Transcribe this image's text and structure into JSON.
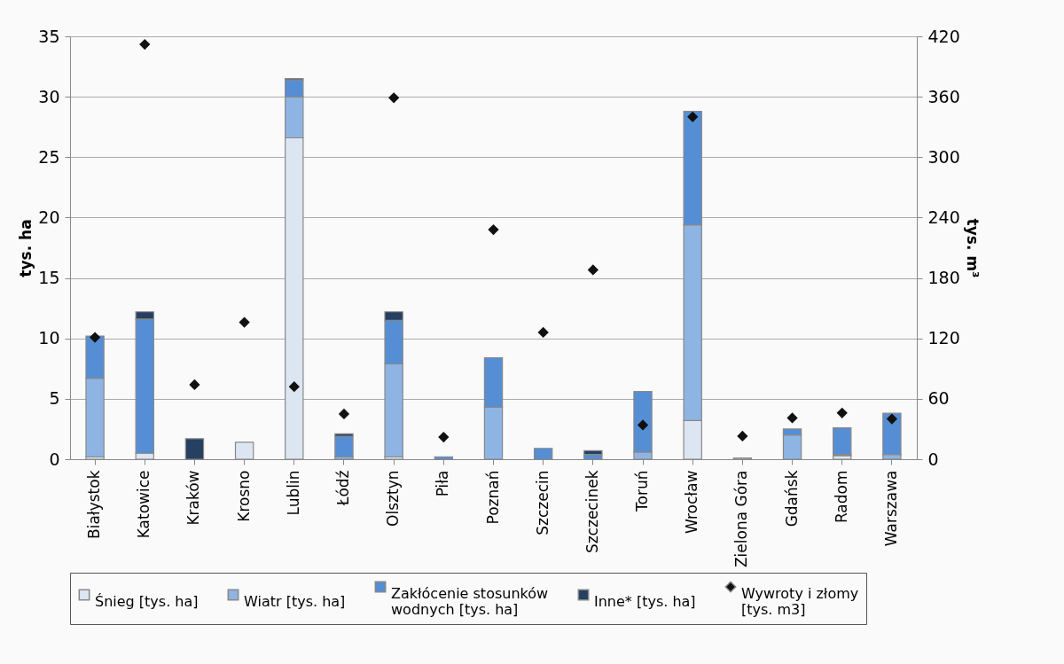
{
  "chart_data": {
    "type": "bar",
    "stacked": true,
    "ylabel": "tys. ha",
    "y2label": "tys. m³",
    "categories": [
      "Białystok",
      "Katowice",
      "Kraków",
      "Krosno",
      "Lublin",
      "Łódź",
      "Olsztyn",
      "Piła",
      "Poznań",
      "Szczecin",
      "Szczecinek",
      "Toruń",
      "Wrocław",
      "Zielona Góra",
      "Gdańsk",
      "Radom",
      "Warszawa"
    ],
    "series": [
      {
        "name": "Śnieg [tys. ha]",
        "color": "#dce6f2",
        "values": [
          0.2,
          0.5,
          0,
          1.4,
          26.6,
          0,
          0.2,
          0,
          0,
          0,
          0,
          0,
          3.2,
          0.1,
          0,
          0.3,
          0
        ]
      },
      {
        "name": "Wiatr [tys. ha]",
        "color": "#8eb4e3",
        "values": [
          6.5,
          0,
          0,
          0,
          3.4,
          0.2,
          7.7,
          0,
          4.3,
          0,
          0,
          0.6,
          16.2,
          0,
          2.0,
          0.1,
          0.4
        ]
      },
      {
        "name": "Zakłócenie stosunków wodnych [tys. ha]",
        "color": "#558ed5",
        "values": [
          3.5,
          11.1,
          0,
          0,
          1.4,
          1.7,
          3.6,
          0.2,
          4.1,
          0.9,
          0.4,
          5.0,
          9.4,
          0,
          0.5,
          2.2,
          3.4
        ]
      },
      {
        "name": "Inne* [tys. ha]",
        "color": "#254061",
        "values": [
          0,
          0.6,
          1.7,
          0,
          0.1,
          0.2,
          0.7,
          0,
          0,
          0,
          0.3,
          0,
          0,
          0,
          0,
          0,
          0
        ]
      },
      {
        "name": "Wywroty i złomy [tys. m3]",
        "type": "scatter",
        "axis": "y2",
        "marker": "diamond",
        "color": "#111111",
        "values": [
          121,
          412,
          74,
          136,
          72,
          45,
          359,
          22,
          228,
          126,
          188,
          34,
          340,
          23,
          41,
          46,
          40
        ]
      }
    ],
    "ylim": [
      0,
      35
    ],
    "yticks": [
      0,
      5,
      10,
      15,
      20,
      25,
      30,
      35
    ],
    "y2lim": [
      0,
      420
    ],
    "y2ticks": [
      0,
      60,
      120,
      180,
      240,
      300,
      360,
      420
    ],
    "grid": "y",
    "legend": "bottom"
  }
}
